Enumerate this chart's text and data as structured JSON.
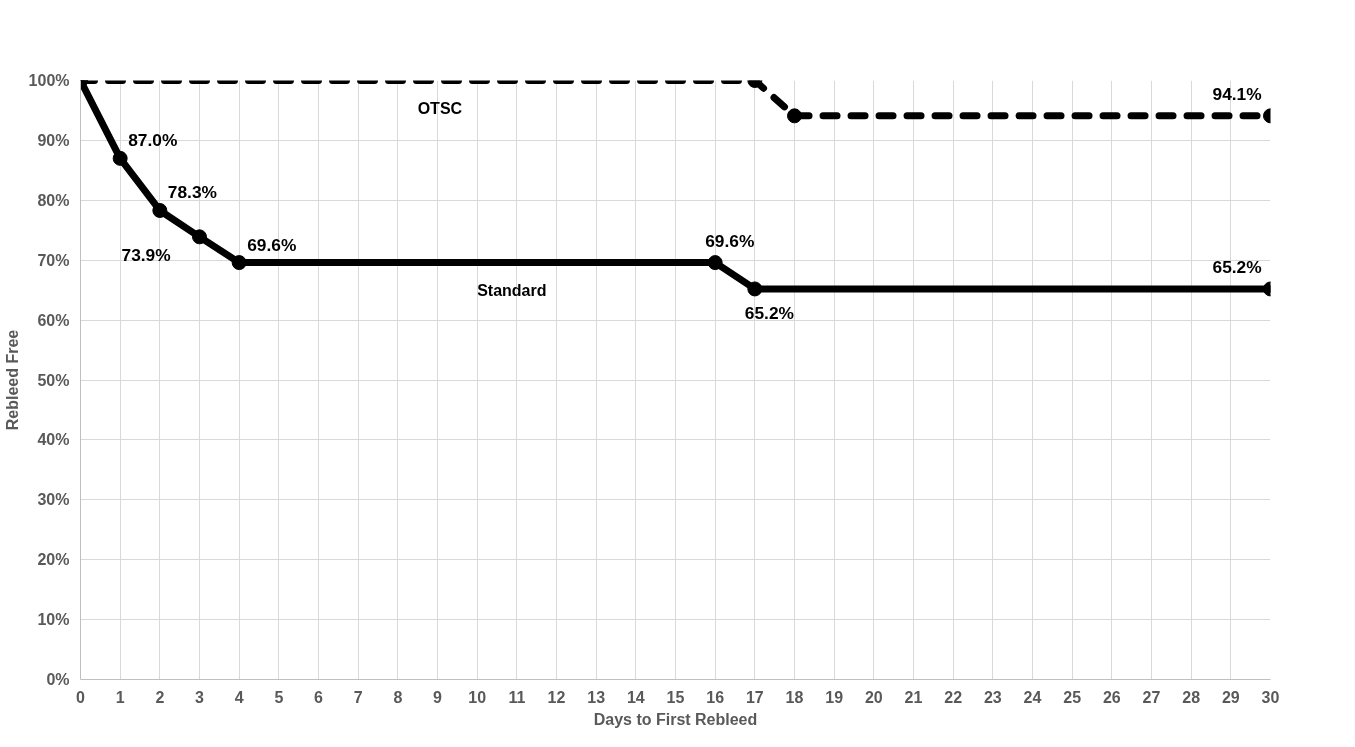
{
  "chart_data": {
    "type": "line",
    "xlabel": "Days to First Rebleed",
    "ylabel": "Rebleed Free",
    "xlim": [
      0,
      30
    ],
    "xticks": [
      0,
      1,
      2,
      3,
      4,
      5,
      6,
      7,
      8,
      9,
      10,
      11,
      12,
      13,
      14,
      15,
      16,
      17,
      18,
      19,
      20,
      21,
      22,
      23,
      24,
      25,
      26,
      27,
      28,
      29,
      30
    ],
    "ylim": [
      0,
      100
    ],
    "yticks": [
      {
        "value": 0,
        "label": "0%"
      },
      {
        "value": 10,
        "label": "10%"
      },
      {
        "value": 20,
        "label": "20%"
      },
      {
        "value": 30,
        "label": "30%"
      },
      {
        "value": 40,
        "label": "40%"
      },
      {
        "value": 50,
        "label": "50%"
      },
      {
        "value": 60,
        "label": "60%"
      },
      {
        "value": 70,
        "label": "70%"
      },
      {
        "value": 80,
        "label": "80%"
      },
      {
        "value": 90,
        "label": "90%"
      },
      {
        "value": 100,
        "label": "100%"
      }
    ],
    "grid": true,
    "marker": "circle",
    "series": [
      {
        "name": "Standard",
        "color": "#000000",
        "line_style": "solid",
        "x": [
          0,
          1,
          2,
          3,
          4,
          16,
          17,
          30
        ],
        "values": [
          100,
          87.0,
          78.3,
          73.9,
          69.6,
          69.6,
          65.2,
          65.2
        ],
        "value_labels": [
          null,
          "87.0%",
          "78.3%",
          "73.9%",
          "69.6%",
          "69.6%",
          "65.2%",
          "65.2%"
        ]
      },
      {
        "name": "OTSC",
        "color": "#000000",
        "line_style": "dashed",
        "x": [
          0,
          17,
          18,
          30
        ],
        "values": [
          100,
          100,
          94.1,
          94.1
        ],
        "value_labels": [
          null,
          null,
          null,
          "94.1%"
        ]
      }
    ]
  }
}
